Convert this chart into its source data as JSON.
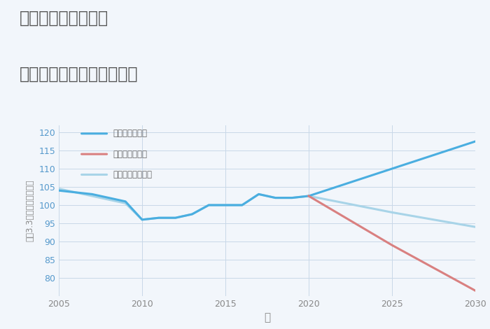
{
  "title_line1": "三重県伊賀市炊村の",
  "title_line2": "中古マンションの価格推移",
  "xlabel": "年",
  "ylabel": "平（3.3㎡）単価（万円）",
  "ylim": [
    75,
    122
  ],
  "yticks": [
    80,
    85,
    90,
    95,
    100,
    105,
    110,
    115,
    120
  ],
  "xticks": [
    2005,
    2010,
    2015,
    2020,
    2025,
    2030
  ],
  "background_color": "#f2f6fb",
  "plot_bg_color": "#f2f6fb",
  "good_scenario": {
    "label": "グッドシナリオ",
    "color": "#4aaee0",
    "years": [
      2005,
      2006,
      2007,
      2008,
      2009,
      2010,
      2011,
      2012,
      2013,
      2014,
      2015,
      2016,
      2017,
      2018,
      2019,
      2020,
      2025,
      2030
    ],
    "values": [
      104,
      103.5,
      103,
      102,
      101,
      96,
      96.5,
      96.5,
      97.5,
      100,
      100,
      100,
      103,
      102,
      102,
      102.5,
      110,
      117.5
    ]
  },
  "bad_scenario": {
    "label": "バッドシナリオ",
    "color": "#d98080",
    "years": [
      2020,
      2025,
      2030
    ],
    "values": [
      102.5,
      89,
      76.5
    ]
  },
  "normal_scenario": {
    "label": "ノーマルシナリオ",
    "color": "#a8d4e8",
    "years": [
      2005,
      2006,
      2007,
      2008,
      2009,
      2010,
      2011,
      2012,
      2013,
      2014,
      2015,
      2016,
      2017,
      2018,
      2019,
      2020,
      2025,
      2030
    ],
    "values": [
      104.5,
      103.5,
      102.5,
      101.5,
      100.5,
      96,
      96.5,
      96.5,
      97.5,
      100,
      100,
      100,
      103,
      102,
      102,
      102.5,
      98,
      94
    ]
  },
  "grid_color": "#c8d8e8",
  "title_color": "#555555",
  "axis_color": "#888888",
  "tick_color": "#5599cc"
}
